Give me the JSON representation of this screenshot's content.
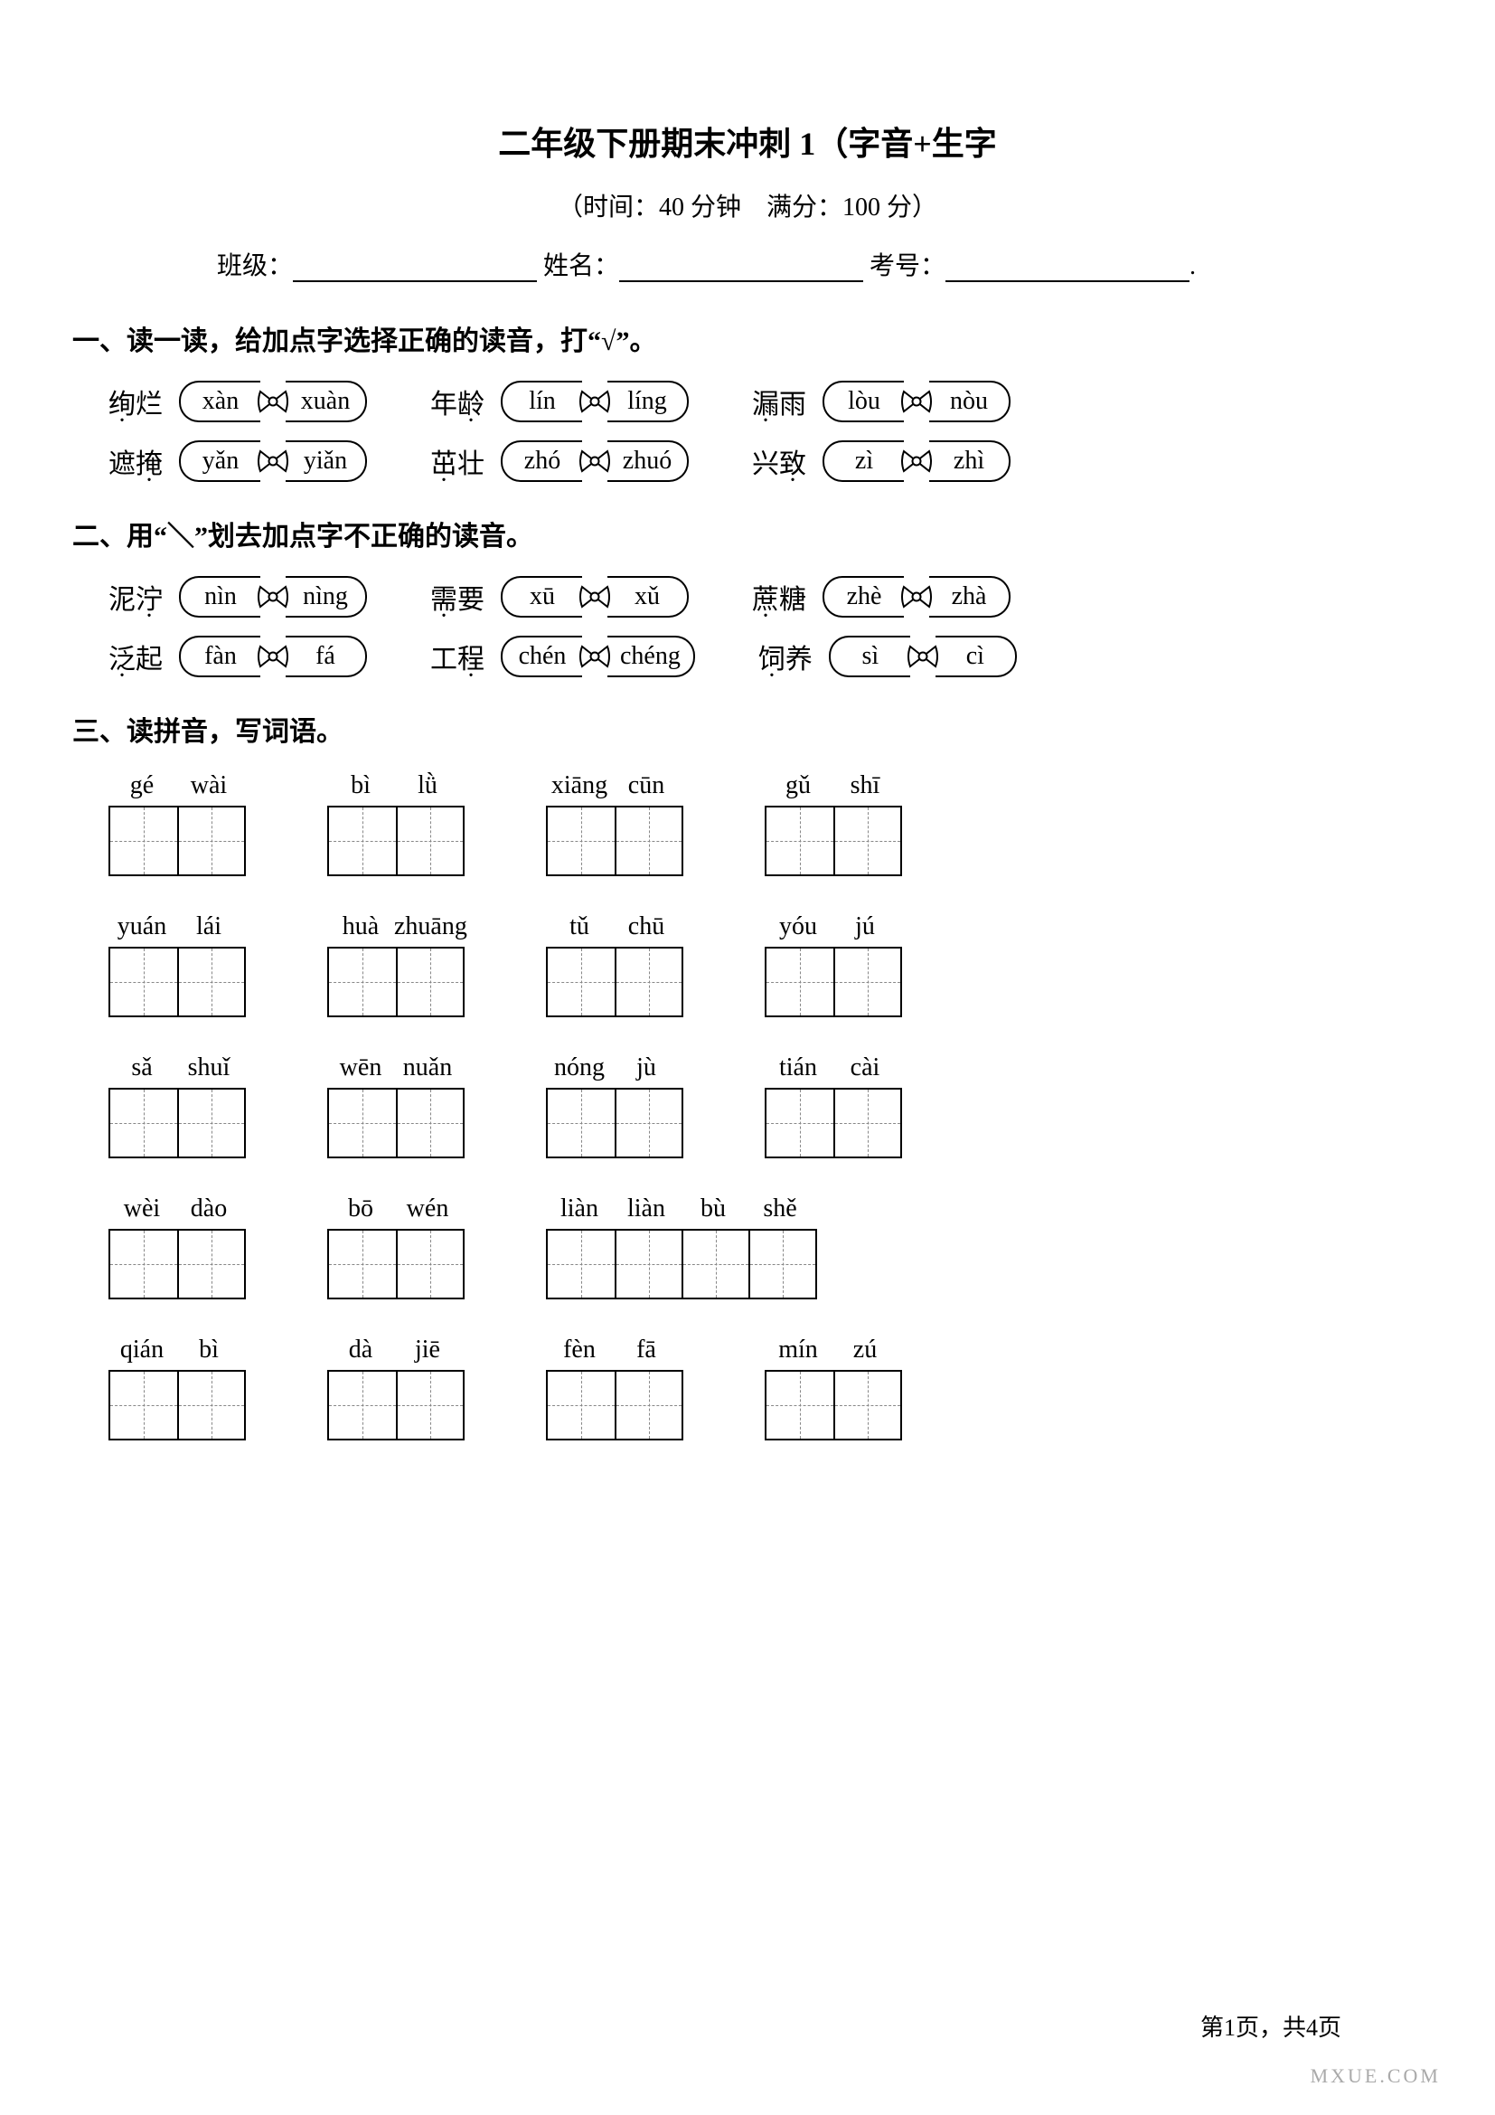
{
  "title": "二年级下册期末冲刺 1（字音+生字",
  "subtitle": "（时间：40 分钟　满分：100 分）",
  "info": {
    "class_label": "班级：",
    "name_label": "姓名：",
    "exam_label": "考号：",
    "tail_dot": "."
  },
  "s1": {
    "heading": "一、读一读，给加点字选择正确的读音，打“√”。",
    "rows": [
      [
        {
          "w1": "绚",
          "w2": "烂",
          "dot": 0,
          "p1": "xàn",
          "p2": "xuàn"
        },
        {
          "w1": "年",
          "w2": "龄",
          "dot": 1,
          "p1": "lín",
          "p2": "líng"
        },
        {
          "w1": "漏",
          "w2": "雨",
          "dot": 0,
          "p1": "lòu",
          "p2": "nòu"
        }
      ],
      [
        {
          "w1": "遮",
          "w2": "掩",
          "dot": 1,
          "p1": "yǎn",
          "p2": "yiǎn"
        },
        {
          "w1": "茁",
          "w2": "壮",
          "dot": 0,
          "p1": "zhó",
          "p2": "zhuó"
        },
        {
          "w1": "兴",
          "w2": "致",
          "dot": 1,
          "p1": "zì",
          "p2": "zhì"
        }
      ]
    ]
  },
  "s2": {
    "heading": "二、用“＼”划去加点字不正确的读音。",
    "rows": [
      [
        {
          "w1": "泥",
          "w2": "泞",
          "dot": 1,
          "p1": "nìn",
          "p2": "nìng"
        },
        {
          "w1": "需",
          "w2": "要",
          "dot": 0,
          "p1": "xū",
          "p2": "xǔ"
        },
        {
          "w1": "蔗",
          "w2": "糖",
          "dot": 0,
          "p1": "zhè",
          "p2": "zhà"
        }
      ],
      [
        {
          "w1": "泛",
          "w2": "起",
          "dot": 0,
          "p1": "fàn",
          "p2": "fá"
        },
        {
          "w1": "工",
          "w2": "程",
          "dot": 1,
          "p1": "chén",
          "p2": "chéng"
        },
        {
          "w1": "饲",
          "w2": "养",
          "dot": 0,
          "p1": "sì",
          "p2": "cì"
        }
      ]
    ]
  },
  "s3": {
    "heading": "三、读拼音，写词语。",
    "rows": [
      [
        [
          "gé",
          "wài"
        ],
        [
          "bì",
          "lǜ"
        ],
        [
          "xiāng",
          "cūn"
        ],
        [
          "gǔ",
          "shī"
        ]
      ],
      [
        [
          "yuán",
          "lái"
        ],
        [
          "huà",
          "zhuāng"
        ],
        [
          "tǔ",
          "chū"
        ],
        [
          "yóu",
          "jú"
        ]
      ],
      [
        [
          "sǎ",
          "shuǐ"
        ],
        [
          "wēn",
          "nuǎn"
        ],
        [
          "nóng",
          "jù"
        ],
        [
          "tián",
          "cài"
        ]
      ],
      [
        [
          "wèi",
          "dào"
        ],
        [
          "bō",
          "wén"
        ],
        [
          "liàn",
          "liàn",
          "bù",
          "shě"
        ]
      ],
      [
        [
          "qián",
          "bì"
        ],
        [
          "dà",
          "jiē"
        ],
        [
          "fèn",
          "fā"
        ],
        [
          "mín",
          "zú"
        ]
      ]
    ]
  },
  "footer": "第1页，共4页",
  "watermark": "MXUE.COM"
}
